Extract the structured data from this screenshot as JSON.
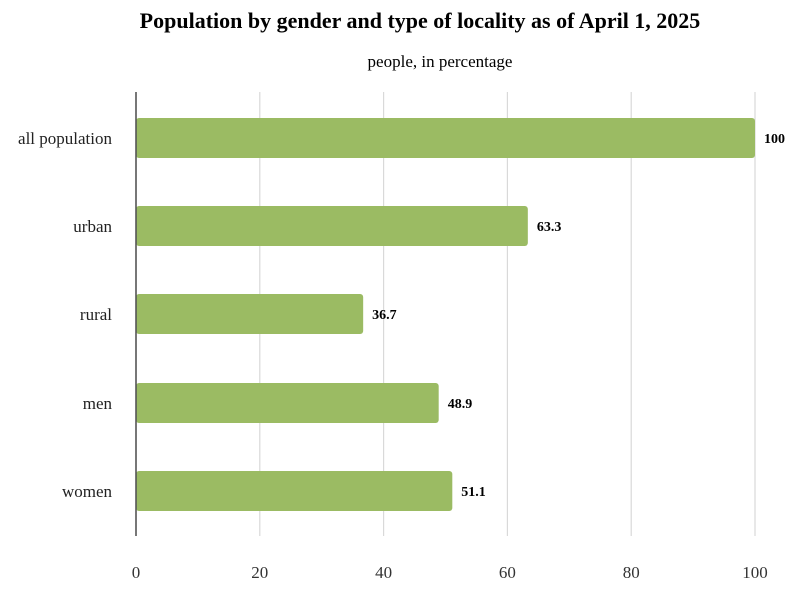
{
  "chart_data": {
    "type": "bar",
    "orientation": "horizontal",
    "title": "Population by gender and type of locality as of April 1, 2025",
    "subtitle": "people, in percentage",
    "categories": [
      "all population",
      "urban",
      "rural",
      "men",
      "women"
    ],
    "values": [
      100,
      63.3,
      36.7,
      48.9,
      51.1
    ],
    "data_labels": [
      "100",
      "63.3",
      "36.7",
      "48.9",
      "51.1"
    ],
    "xlim": [
      0,
      100
    ],
    "xticks": [
      0,
      20,
      40,
      60,
      80,
      100
    ],
    "xtick_labels": [
      "0",
      "20",
      "40",
      "60",
      "80",
      "100"
    ],
    "grid": "vertical",
    "legend": "none",
    "bar_color": "#9bbb63"
  }
}
